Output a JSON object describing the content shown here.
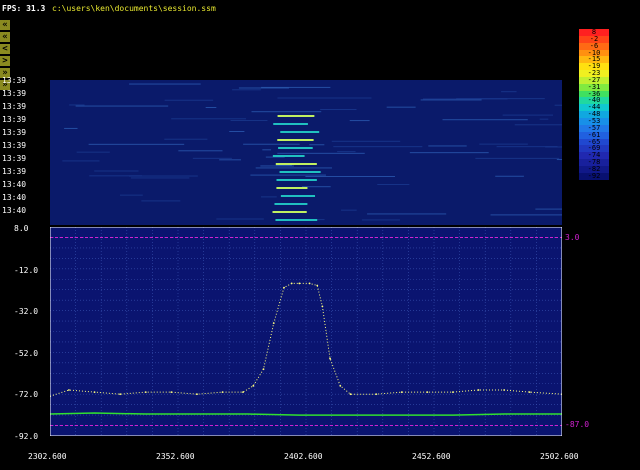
{
  "header": {
    "fps": "FPS: 31.3",
    "path": "c:\\users\\ken\\documents\\session.ssm"
  },
  "nav_buttons": [
    "«",
    "«",
    "<",
    ">",
    "»",
    "»"
  ],
  "waterfall": {
    "timestamps": [
      "13:39",
      "13:39",
      "13:39",
      "13:39",
      "13:39",
      "13:39",
      "13:39",
      "13:39",
      "13:40",
      "13:40",
      "13:40"
    ]
  },
  "color_scale": {
    "labels": [
      "8",
      "-2",
      "-6",
      "-10",
      "-15",
      "-19",
      "-23",
      "-27",
      "-31",
      "-36",
      "-40",
      "-44",
      "-48",
      "-53",
      "-57",
      "-61",
      "-65",
      "-69",
      "-74",
      "-78",
      "-82",
      "-92"
    ],
    "colors": [
      "#ff2020",
      "#ff4418",
      "#ff6a14",
      "#ff9010",
      "#ffb810",
      "#ffe010",
      "#f0f020",
      "#c0f030",
      "#80ea40",
      "#40e060",
      "#20d8a0",
      "#10c8d0",
      "#10a8e0",
      "#1890e8",
      "#2078e8",
      "#2060e0",
      "#2048d0",
      "#2038c0",
      "#2028b0",
      "#18209c",
      "#101888",
      "#081070"
    ]
  },
  "spectrum": {
    "y_ticks": [
      "8.0",
      "-12.0",
      "-32.0",
      "-52.0",
      "-72.0",
      "-92.0"
    ],
    "x_ticks": [
      "2302.600",
      "2352.600",
      "2402.600",
      "2452.600",
      "2502.600"
    ],
    "marker_top": "3.0",
    "marker_bottom": "-87.0"
  },
  "chart_data": {
    "type": "line",
    "xlabel": "",
    "ylabel": "",
    "xlim": [
      2302.6,
      2502.6
    ],
    "ylim": [
      -92,
      8
    ],
    "grid": true,
    "series": [
      {
        "name": "",
        "color": "#ffff80",
        "x": [
          2302.6,
          2310,
          2320,
          2330,
          2340,
          2350,
          2360,
          2370,
          2378,
          2382,
          2386,
          2390,
          2394,
          2397,
          2400,
          2404,
          2407,
          2409,
          2412,
          2416,
          2420,
          2430,
          2440,
          2450,
          2460,
          2470,
          2480,
          2490,
          2502.6
        ],
        "y": [
          -73,
          -70,
          -71,
          -72,
          -71,
          -71,
          -72,
          -71,
          -71,
          -68,
          -60,
          -38,
          -21,
          -19,
          -19,
          -19,
          -20,
          -30,
          -55,
          -68,
          -72,
          -72,
          -71,
          -71,
          -71,
          -70,
          -70,
          -71,
          -72
        ]
      },
      {
        "name": "",
        "color": "#30e030",
        "x": [
          2302.6,
          2320,
          2340,
          2360,
          2380,
          2400,
          2420,
          2440,
          2460,
          2480,
          2502.6
        ],
        "y": [
          -81.5,
          -81,
          -81.5,
          -81.5,
          -81.5,
          -82,
          -82,
          -82,
          -82,
          -81.5,
          -81.5
        ]
      }
    ],
    "markers": [
      {
        "y": 3.0,
        "color": "#d020d0"
      },
      {
        "y": -87.0,
        "color": "#d020d0"
      }
    ]
  }
}
